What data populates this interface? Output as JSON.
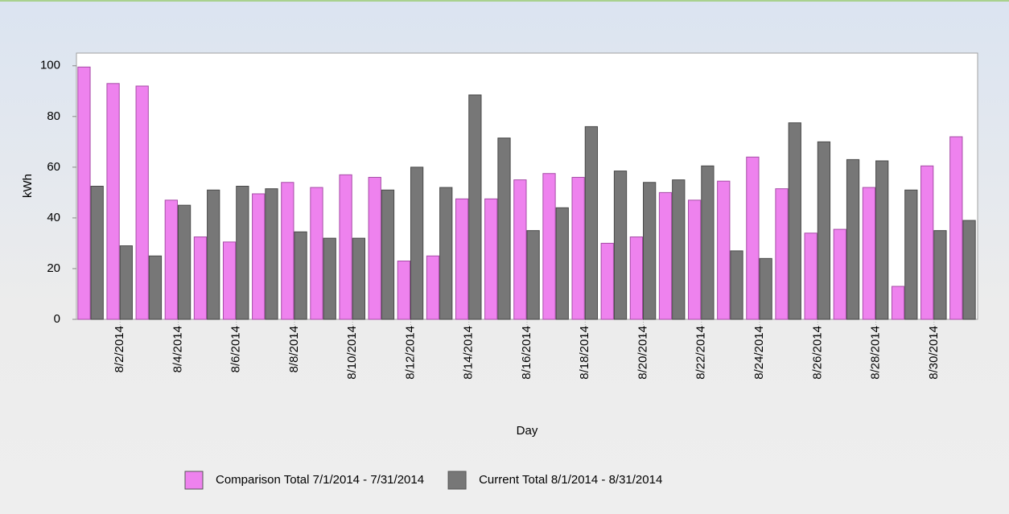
{
  "chart_data": {
    "type": "bar",
    "x_label": "Day",
    "y_label": "kWh",
    "categories": [
      null,
      "8/2/2014",
      null,
      "8/4/2014",
      null,
      "8/6/2014",
      null,
      "8/8/2014",
      null,
      "8/10/2014",
      null,
      "8/12/2014",
      null,
      "8/14/2014",
      null,
      "8/16/2014",
      null,
      "8/18/2014",
      null,
      "8/20/2014",
      null,
      "8/22/2014",
      null,
      "8/24/2014",
      null,
      "8/26/2014",
      null,
      "8/28/2014",
      null,
      "8/30/2014",
      null
    ],
    "series": [
      {
        "name": "Comparison Total 7/1/2014 - 7/31/2014",
        "color": "#ee82ee",
        "values": [
          99.5,
          93,
          92,
          47,
          32.5,
          30.5,
          49.5,
          54,
          52,
          57,
          56,
          23,
          25,
          47.5,
          47.5,
          55,
          57.5,
          56,
          30,
          32.5,
          50,
          47,
          54.5,
          64,
          51.5,
          34,
          35.5,
          52,
          13,
          60.5,
          72
        ]
      },
      {
        "name": "Current Total 8/1/2014 - 8/31/2014",
        "color": "#777777",
        "values": [
          52.5,
          29,
          25,
          45,
          51,
          52.5,
          51.5,
          34.5,
          32,
          32,
          51,
          60,
          52,
          88.5,
          71.5,
          35,
          44,
          76,
          58.5,
          54,
          55,
          60.5,
          27,
          24,
          77.5,
          70,
          63,
          62.5,
          51,
          35,
          39
        ]
      }
    ],
    "ylim": [
      0,
      105
    ],
    "yticks": [
      0,
      20,
      40,
      60,
      80,
      100
    ],
    "grid": false,
    "legend": "bottom"
  }
}
